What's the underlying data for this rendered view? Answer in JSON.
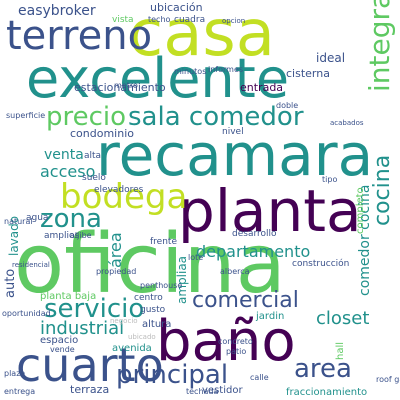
{
  "wordcloud": {
    "palette": {
      "dark_purple": "#440154",
      "indigo": "#3b528b",
      "teal": "#21918c",
      "green": "#5ec962",
      "yellow_green": "#c2df23",
      "light": "#bcbcbc"
    },
    "words": [
      "casa",
      "excelente",
      "terreno",
      "recamara",
      "planta",
      "oficina",
      "baño",
      "cuarto",
      "bodega",
      "sala comedor",
      "precio",
      "zona",
      "servicio",
      "comercial",
      "principal",
      "area",
      "industrial",
      "departamento",
      "closet",
      "integral",
      "acceso",
      "venta",
      "cocina",
      "ideal",
      "estacionamiento",
      "ubicación",
      "easybroker",
      "vista",
      "entrada",
      "cisterna",
      "condominio",
      "lavado",
      "área",
      "auto",
      "comedor cocina",
      "planta baja",
      "espacio",
      "terraza",
      "vestidor",
      "fraccionamiento",
      "avenida",
      "jardin",
      "penthouse",
      "construcción",
      "desarrollo",
      "frente",
      "altura",
      "agua",
      "metro",
      "superficie",
      "techo",
      "cuadra",
      "ampliaa",
      "completo",
      "privada",
      "locales",
      "hall",
      "vende",
      "techada",
      "roof garden",
      "entrega",
      "plaza",
      "concreto",
      "patio",
      "centro",
      "gusto",
      "lote",
      "alta",
      "elevadores",
      "nivel",
      "doble",
      "minutos",
      "informes",
      "alberca",
      "calle",
      "ubicado",
      "suelo",
      "aljibe",
      "amplios",
      "negocio",
      "propiedad",
      "oportunidad",
      "residencial",
      "tipo",
      "acabados",
      "natural",
      "opcion"
    ]
  }
}
